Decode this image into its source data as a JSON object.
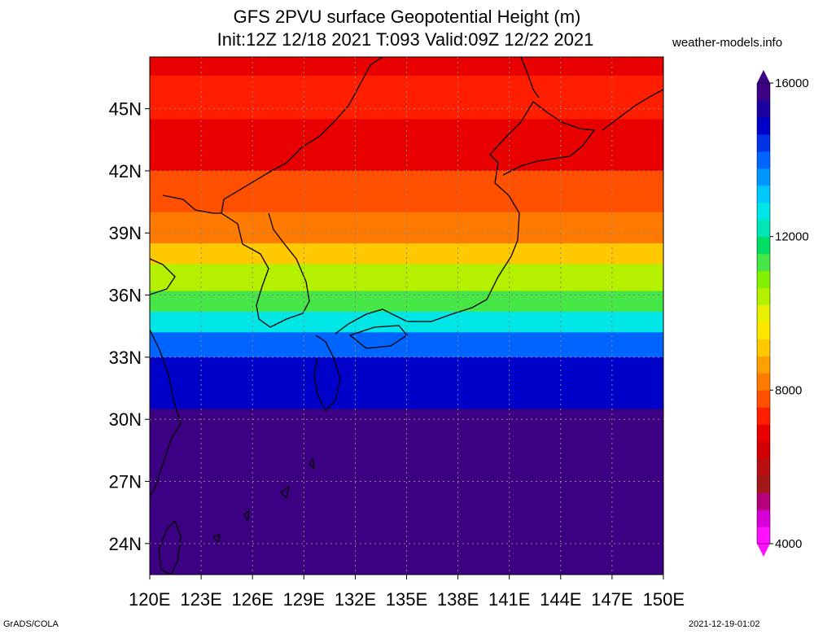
{
  "title": {
    "line1": "GFS 2PVU surface Geopotential Height (m)",
    "line2": "Init:12Z 12/18 2021 T:093 Valid:09Z 12/22 2021"
  },
  "site": "weather-models.info",
  "footer": {
    "left": "GrADS/COLA",
    "right": "2021-12-19-01:02"
  },
  "map": {
    "lon_range": [
      120,
      150
    ],
    "lat_range": [
      22.5,
      47.5
    ],
    "lat_ticks": [
      "45N",
      "42N",
      "39N",
      "36N",
      "33N",
      "30N",
      "27N",
      "24N"
    ],
    "lat_tick_values": [
      45,
      42,
      39,
      36,
      33,
      30,
      27,
      24
    ],
    "lon_ticks": [
      "120E",
      "123E",
      "126E",
      "129E",
      "132E",
      "135E",
      "138E",
      "141E",
      "144E",
      "147E",
      "150E"
    ],
    "lon_tick_values": [
      120,
      123,
      126,
      129,
      132,
      135,
      138,
      141,
      144,
      147,
      150
    ],
    "field_bands": [
      {
        "lat_top": 47.5,
        "lat_bottom": 46.6,
        "height_m": 7000
      },
      {
        "lat_top": 46.6,
        "lat_bottom": 44.5,
        "height_m": 7400
      },
      {
        "lat_top": 44.5,
        "lat_bottom": 42.0,
        "height_m": 7000
      },
      {
        "lat_top": 42.0,
        "lat_bottom": 40.0,
        "height_m": 7800
      },
      {
        "lat_top": 40.0,
        "lat_bottom": 38.5,
        "height_m": 8200
      },
      {
        "lat_top": 38.5,
        "lat_bottom": 37.5,
        "height_m": 9200
      },
      {
        "lat_top": 37.5,
        "lat_bottom": 36.2,
        "height_m": 10400
      },
      {
        "lat_top": 36.2,
        "lat_bottom": 35.2,
        "height_m": 11400
      },
      {
        "lat_top": 35.2,
        "lat_bottom": 34.2,
        "height_m": 12600
      },
      {
        "lat_top": 34.2,
        "lat_bottom": 33.0,
        "height_m": 14200
      },
      {
        "lat_top": 33.0,
        "lat_bottom": 30.5,
        "height_m": 15000
      },
      {
        "lat_top": 30.5,
        "lat_bottom": 22.5,
        "height_m": 15800
      }
    ]
  },
  "colorbar": {
    "min": 4000,
    "max": 16000,
    "labels": [
      "16000",
      "12000",
      "8000",
      "4000"
    ],
    "label_values": [
      16000,
      12000,
      8000,
      4000
    ],
    "colors": [
      "#ff10ff",
      "#d600d6",
      "#b4007a",
      "#a01818",
      "#b81010",
      "#d20000",
      "#e80000",
      "#ff1e00",
      "#ff5000",
      "#ff7a00",
      "#ffa000",
      "#ffc800",
      "#ffe800",
      "#e6f000",
      "#b4f000",
      "#82f000",
      "#46e646",
      "#00dc64",
      "#00e6b4",
      "#00e6e6",
      "#00c8ff",
      "#0096ff",
      "#0064ff",
      "#0032e6",
      "#0000c8",
      "#1e00a0",
      "#3c0082"
    ]
  }
}
